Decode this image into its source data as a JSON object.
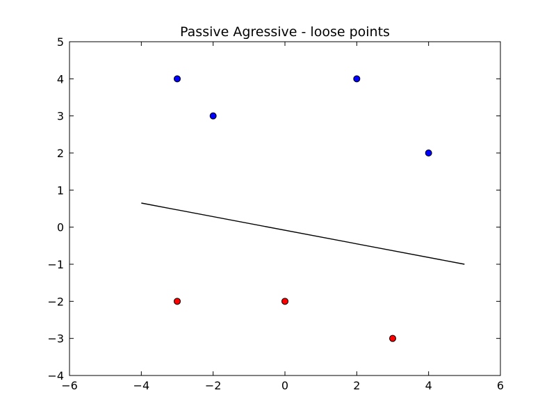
{
  "chart_data": {
    "type": "scatter",
    "title": "Passive Agressive - loose points",
    "xlabel": "",
    "ylabel": "",
    "xlim": [
      -6,
      6
    ],
    "ylim": [
      -4,
      5
    ],
    "x_ticks": [
      -6,
      -4,
      -2,
      0,
      2,
      4,
      6
    ],
    "y_ticks": [
      -4,
      -3,
      -2,
      -1,
      0,
      1,
      2,
      3,
      4,
      5
    ],
    "grid": false,
    "legend": "none",
    "series": [
      {
        "color": "#0000ff",
        "points": [
          {
            "x": -3,
            "y": 4
          },
          {
            "x": -2,
            "y": 3
          },
          {
            "x": 2,
            "y": 4
          },
          {
            "x": 4,
            "y": 2
          }
        ]
      },
      {
        "color": "#ff0000",
        "points": [
          {
            "x": -3,
            "y": -2
          },
          {
            "x": 0,
            "y": -2
          },
          {
            "x": 3,
            "y": -3
          }
        ]
      }
    ],
    "decision_line": {
      "color": "#000000",
      "points": [
        {
          "x": -4,
          "y": 0.65
        },
        {
          "x": 5,
          "y": -1.0
        }
      ]
    }
  }
}
